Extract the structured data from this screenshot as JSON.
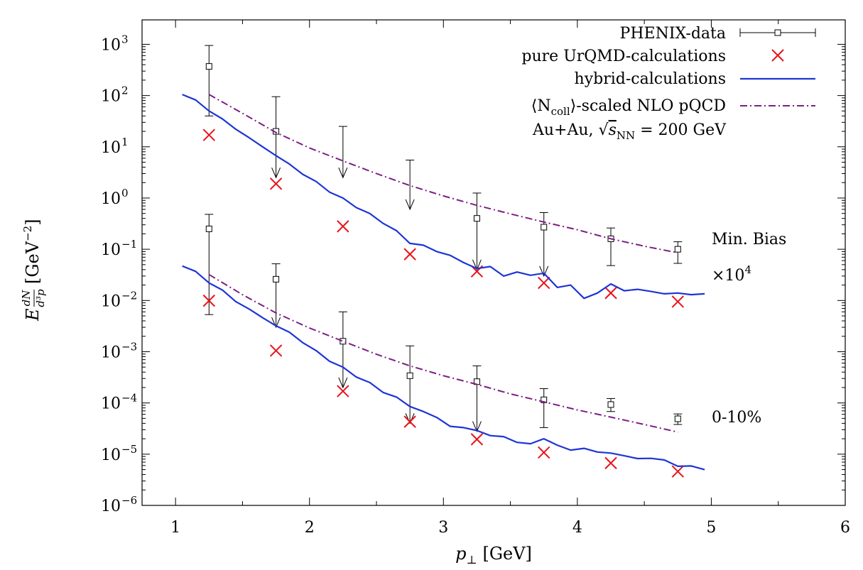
{
  "chart_data": {
    "type": "line",
    "xlabel_main": "p",
    "xlabel_sub": "⊥",
    "xlabel_unit": "[GeV]",
    "ylabel_E": "E",
    "ylabel_num": "dN",
    "ylabel_den": "d³p",
    "ylabel_unit": "[GeV",
    "ylabel_exp": "−2",
    "ylabel_close": "]",
    "xlim": [
      0.75,
      6
    ],
    "ylim": [
      1e-06,
      3000
    ],
    "y_scale": "log",
    "x_ticks": [
      1,
      2,
      3,
      4,
      5,
      6
    ],
    "x_tick_labels": [
      "1",
      "2",
      "3",
      "4",
      "5",
      "6"
    ],
    "y_ticks": [
      1e-06,
      1e-05,
      0.0001,
      0.001,
      0.01,
      0.1,
      1,
      10,
      100,
      1000
    ],
    "y_tick_exponents": [
      "−6",
      "−5",
      "−4",
      "−3",
      "−2",
      "−1",
      "0",
      "1",
      "2",
      "3"
    ],
    "y_tick_base": "10",
    "legend": [
      {
        "label": "PHENIX-data",
        "style": "errorbar",
        "color": "#000000"
      },
      {
        "label": "pure UrQMD-calculations",
        "style": "cross",
        "color": "#e8141a"
      },
      {
        "label": "hybrid-calculations",
        "style": "solid",
        "color": "#1d35d6"
      },
      {
        "label_pre": "⟨N",
        "label_sub": "coll",
        "label_post": "⟩-scaled NLO pQCD",
        "style": "dashdot",
        "color": "#7b1f83"
      }
    ],
    "legend_position": "top-right",
    "system_label_pre": "Au+Au, ",
    "system_label_sqrt": "s",
    "system_label_sub": "NN",
    "system_label_post": " = 200 GeV",
    "annotations": {
      "minbias": "Min. Bias",
      "scale_base": "×10",
      "scale_exp": "4",
      "central": "0-10%"
    },
    "series": [
      {
        "name": "PHENIX-data",
        "group": "Min. Bias",
        "points": [
          {
            "x": 1.25,
            "y": 370,
            "ylo": 40,
            "yhi": 950
          },
          {
            "x": 1.75,
            "y": 20,
            "ylo": 2.5,
            "yhi": 95,
            "arrow": true
          },
          {
            "x": 2.25,
            "y": null,
            "ylo": 2.5,
            "yhi": 25,
            "arrow": true
          },
          {
            "x": 2.75,
            "y": null,
            "ylo": 0.6,
            "yhi": 5.5,
            "arrow": true
          },
          {
            "x": 3.25,
            "y": 0.4,
            "ylo": 0.04,
            "yhi": 1.25,
            "arrow": true
          },
          {
            "x": 3.75,
            "y": 0.27,
            "ylo": 0.03,
            "yhi": 0.52,
            "arrow": true
          },
          {
            "x": 4.25,
            "y": 0.16,
            "ylo": 0.048,
            "yhi": 0.26
          },
          {
            "x": 4.75,
            "y": 0.1,
            "ylo": 0.053,
            "yhi": 0.14
          }
        ]
      },
      {
        "name": "PHENIX-data",
        "group": "0-10%",
        "points": [
          {
            "x": 1.25,
            "y": 0.25,
            "ylo": 0.0053,
            "yhi": 0.48
          },
          {
            "x": 1.75,
            "y": 0.026,
            "ylo": 0.003,
            "yhi": 0.052,
            "arrow": true
          },
          {
            "x": 2.25,
            "y": 0.0016,
            "ylo": 0.0002,
            "yhi": 0.006,
            "arrow": true
          },
          {
            "x": 2.75,
            "y": 0.00034,
            "ylo": 4e-05,
            "yhi": 0.0013,
            "arrow": true
          },
          {
            "x": 3.25,
            "y": 0.00026,
            "ylo": 2.8e-05,
            "yhi": 0.00053,
            "arrow": true
          },
          {
            "x": 3.75,
            "y": 0.000115,
            "ylo": 3.3e-05,
            "yhi": 0.00019
          },
          {
            "x": 4.25,
            "y": 9.3e-05,
            "ylo": 6.8e-05,
            "yhi": 0.000122
          },
          {
            "x": 4.75,
            "y": 4.9e-05,
            "ylo": 3.8e-05,
            "yhi": 6.1e-05
          }
        ]
      },
      {
        "name": "pure UrQMD-calculations",
        "group": "Min. Bias",
        "x": [
          1.25,
          1.75,
          2.25,
          2.75,
          3.25,
          3.75,
          4.25,
          4.75
        ],
        "values": [
          17,
          1.9,
          0.28,
          0.08,
          0.037,
          0.022,
          0.014,
          0.0095
        ]
      },
      {
        "name": "pure UrQMD-calculations",
        "group": "0-10%",
        "x": [
          1.25,
          1.75,
          2.25,
          2.75,
          3.25,
          3.75,
          4.25,
          4.75
        ],
        "values": [
          0.0099,
          0.00105,
          0.00017,
          4.3e-05,
          1.95e-05,
          1.08e-05,
          6.7e-06,
          4.6e-06
        ]
      },
      {
        "name": "hybrid-calculations",
        "group": "Min. Bias",
        "x": [
          1.05,
          1.15,
          1.25,
          1.35,
          1.45,
          1.55,
          1.65,
          1.75,
          1.85,
          1.95,
          2.05,
          2.15,
          2.25,
          2.35,
          2.45,
          2.55,
          2.65,
          2.75,
          2.85,
          2.95,
          3.05,
          3.15,
          3.25,
          3.35,
          3.45,
          3.55,
          3.65,
          3.75,
          3.85,
          3.95,
          4.05,
          4.15,
          4.25,
          4.35,
          4.45,
          4.55,
          4.65,
          4.75,
          4.85,
          4.95
        ],
        "values": [
          105,
          82,
          50,
          35,
          22,
          15,
          10,
          6.7,
          4.6,
          2.9,
          2.1,
          1.3,
          1.0,
          0.65,
          0.5,
          0.32,
          0.23,
          0.13,
          0.12,
          0.09,
          0.076,
          0.055,
          0.042,
          0.046,
          0.03,
          0.036,
          0.031,
          0.034,
          0.018,
          0.02,
          0.011,
          0.014,
          0.021,
          0.0155,
          0.0165,
          0.015,
          0.0135,
          0.014,
          0.013,
          0.0135
        ]
      },
      {
        "name": "hybrid-calculations",
        "group": "0-10%",
        "x": [
          1.05,
          1.15,
          1.25,
          1.35,
          1.45,
          1.55,
          1.65,
          1.75,
          1.85,
          1.95,
          2.05,
          2.15,
          2.25,
          2.35,
          2.45,
          2.55,
          2.65,
          2.75,
          2.85,
          2.95,
          3.05,
          3.15,
          3.25,
          3.35,
          3.45,
          3.55,
          3.65,
          3.75,
          3.85,
          3.95,
          4.05,
          4.15,
          4.25,
          4.35,
          4.45,
          4.55,
          4.65,
          4.75,
          4.85,
          4.95
        ],
        "values": [
          0.047,
          0.037,
          0.022,
          0.016,
          0.0095,
          0.0068,
          0.0046,
          0.0032,
          0.0024,
          0.0015,
          0.00105,
          0.00065,
          0.0005,
          0.00032,
          0.00025,
          0.00016,
          0.00013,
          8.5e-05,
          6.8e-05,
          5.2e-05,
          3.5e-05,
          3.3e-05,
          2.9e-05,
          2.3e-05,
          2.2e-05,
          1.7e-05,
          1.6e-05,
          2e-05,
          1.5e-05,
          1.2e-05,
          1.3e-05,
          1.1e-05,
          1.05e-05,
          9.3e-06,
          8.2e-06,
          8.3e-06,
          7.7e-06,
          5.8e-06,
          5.9e-06,
          5e-06
        ]
      },
      {
        "name": "⟨Ncoll⟩-scaled NLO pQCD",
        "group": "Min. Bias",
        "x": [
          1.25,
          1.5,
          1.75,
          2.0,
          2.25,
          2.5,
          2.75,
          3.0,
          3.25,
          3.5,
          3.75,
          4.0,
          4.25,
          4.5,
          4.75
        ],
        "values": [
          105,
          45,
          19,
          9.5,
          5.3,
          3.0,
          1.75,
          1.1,
          0.72,
          0.49,
          0.34,
          0.24,
          0.16,
          0.115,
          0.085
        ]
      },
      {
        "name": "⟨Ncoll⟩-scaled NLO pQCD",
        "group": "0-10%",
        "x": [
          1.25,
          1.5,
          1.75,
          2.0,
          2.25,
          2.5,
          2.75,
          3.0,
          3.25,
          3.5,
          3.75,
          4.0,
          4.25,
          4.5,
          4.75
        ],
        "values": [
          0.032,
          0.013,
          0.0057,
          0.0029,
          0.0016,
          0.00089,
          0.00053,
          0.00034,
          0.00023,
          0.00015,
          0.000105,
          7.3e-05,
          5.3e-05,
          3.8e-05,
          2.7e-05
        ]
      }
    ]
  }
}
